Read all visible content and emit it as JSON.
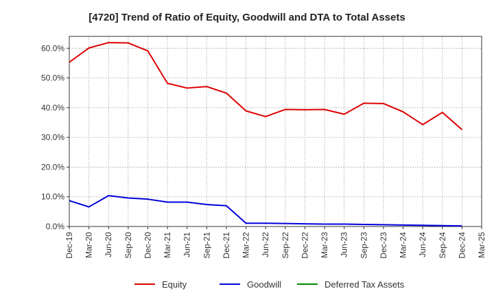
{
  "chart_data": {
    "type": "line",
    "title": "[4720]  Trend of Ratio of Equity, Goodwill and DTA to Total Assets",
    "xlabel": "",
    "ylabel": "",
    "ylim": [
      0,
      64
    ],
    "yticks": [
      0,
      10,
      20,
      30,
      40,
      50,
      60
    ],
    "ytick_labels": [
      "0.0%",
      "10.0%",
      "20.0%",
      "30.0%",
      "40.0%",
      "50.0%",
      "60.0%"
    ],
    "categories": [
      "Dec-19",
      "Mar-20",
      "Jun-20",
      "Sep-20",
      "Dec-20",
      "Mar-21",
      "Jun-21",
      "Sep-21",
      "Dec-21",
      "Mar-22",
      "Jun-22",
      "Sep-22",
      "Dec-22",
      "Mar-23",
      "Jun-23",
      "Sep-23",
      "Dec-23",
      "Mar-24",
      "Jun-24",
      "Sep-24",
      "Dec-24",
      "Mar-25"
    ],
    "grid": true,
    "legend_position": "bottom",
    "series": [
      {
        "name": "Equity",
        "color": "#dd0000",
        "values": [
          55.3,
          60.1,
          61.9,
          61.8,
          59.1,
          48.2,
          46.6,
          47.1,
          44.9,
          38.9,
          37.0,
          39.4,
          39.3,
          39.4,
          37.8,
          41.5,
          41.4,
          38.6,
          34.3,
          38.4,
          32.6,
          null
        ]
      },
      {
        "name": "Goodwill",
        "color": "#0000dd",
        "values": [
          8.7,
          6.6,
          10.4,
          9.6,
          9.2,
          8.2,
          8.2,
          7.4,
          7.0,
          1.1,
          1.1,
          1.0,
          0.9,
          0.8,
          0.8,
          0.7,
          0.6,
          0.5,
          0.4,
          0.3,
          0.2,
          null
        ]
      },
      {
        "name": "Deferred Tax Assets",
        "color": "#008800",
        "values": [
          null,
          null,
          null,
          null,
          null,
          null,
          null,
          null,
          null,
          null,
          null,
          null,
          null,
          null,
          null,
          null,
          null,
          null,
          null,
          null,
          null,
          null
        ]
      }
    ]
  }
}
